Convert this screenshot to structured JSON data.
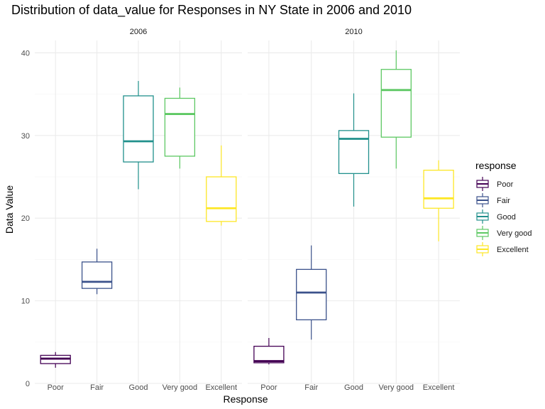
{
  "chart_data": {
    "type": "boxplot",
    "title": "Distribution of data_value for Responses in NY State in 2006 and 2010",
    "xlabel": "Response",
    "ylabel": "Data Value",
    "ylim": [
      0,
      41.5
    ],
    "yticks": [
      0,
      10,
      20,
      30,
      40
    ],
    "grid": true,
    "categories": [
      "Poor",
      "Fair",
      "Good",
      "Very good",
      "Excellent"
    ],
    "colors": {
      "Poor": "#440154",
      "Fair": "#3b528b",
      "Good": "#21908c",
      "Very good": "#5dc863",
      "Excellent": "#fde725"
    },
    "legend": {
      "title": "response",
      "position": "right",
      "entries": [
        "Poor",
        "Fair",
        "Good",
        "Very good",
        "Excellent"
      ]
    },
    "panels": [
      {
        "label": "2006",
        "boxes": [
          {
            "category": "Poor",
            "min": 1.9,
            "q1": 2.4,
            "median": 3.0,
            "q3": 3.4,
            "max": 3.8
          },
          {
            "category": "Fair",
            "min": 10.8,
            "q1": 11.5,
            "median": 12.3,
            "q3": 14.7,
            "max": 16.3
          },
          {
            "category": "Good",
            "min": 23.5,
            "q1": 26.8,
            "median": 29.3,
            "q3": 34.8,
            "max": 36.6
          },
          {
            "category": "Very good",
            "min": 26.0,
            "q1": 27.5,
            "median": 32.6,
            "q3": 34.5,
            "max": 35.8
          },
          {
            "category": "Excellent",
            "min": 19.1,
            "q1": 19.6,
            "median": 21.2,
            "q3": 25.0,
            "max": 28.8
          }
        ]
      },
      {
        "label": "2010",
        "boxes": [
          {
            "category": "Poor",
            "min": 2.3,
            "q1": 2.5,
            "median": 2.7,
            "q3": 4.5,
            "max": 5.5
          },
          {
            "category": "Fair",
            "min": 5.3,
            "q1": 7.7,
            "median": 11.0,
            "q3": 13.8,
            "max": 16.7
          },
          {
            "category": "Good",
            "min": 21.4,
            "q1": 25.4,
            "median": 29.6,
            "q3": 30.6,
            "max": 35.1
          },
          {
            "category": "Very good",
            "min": 26.0,
            "q1": 29.8,
            "median": 35.5,
            "q3": 38.0,
            "max": 40.3
          },
          {
            "category": "Excellent",
            "min": 17.2,
            "q1": 21.2,
            "median": 22.4,
            "q3": 25.8,
            "max": 27.0
          }
        ]
      }
    ]
  }
}
